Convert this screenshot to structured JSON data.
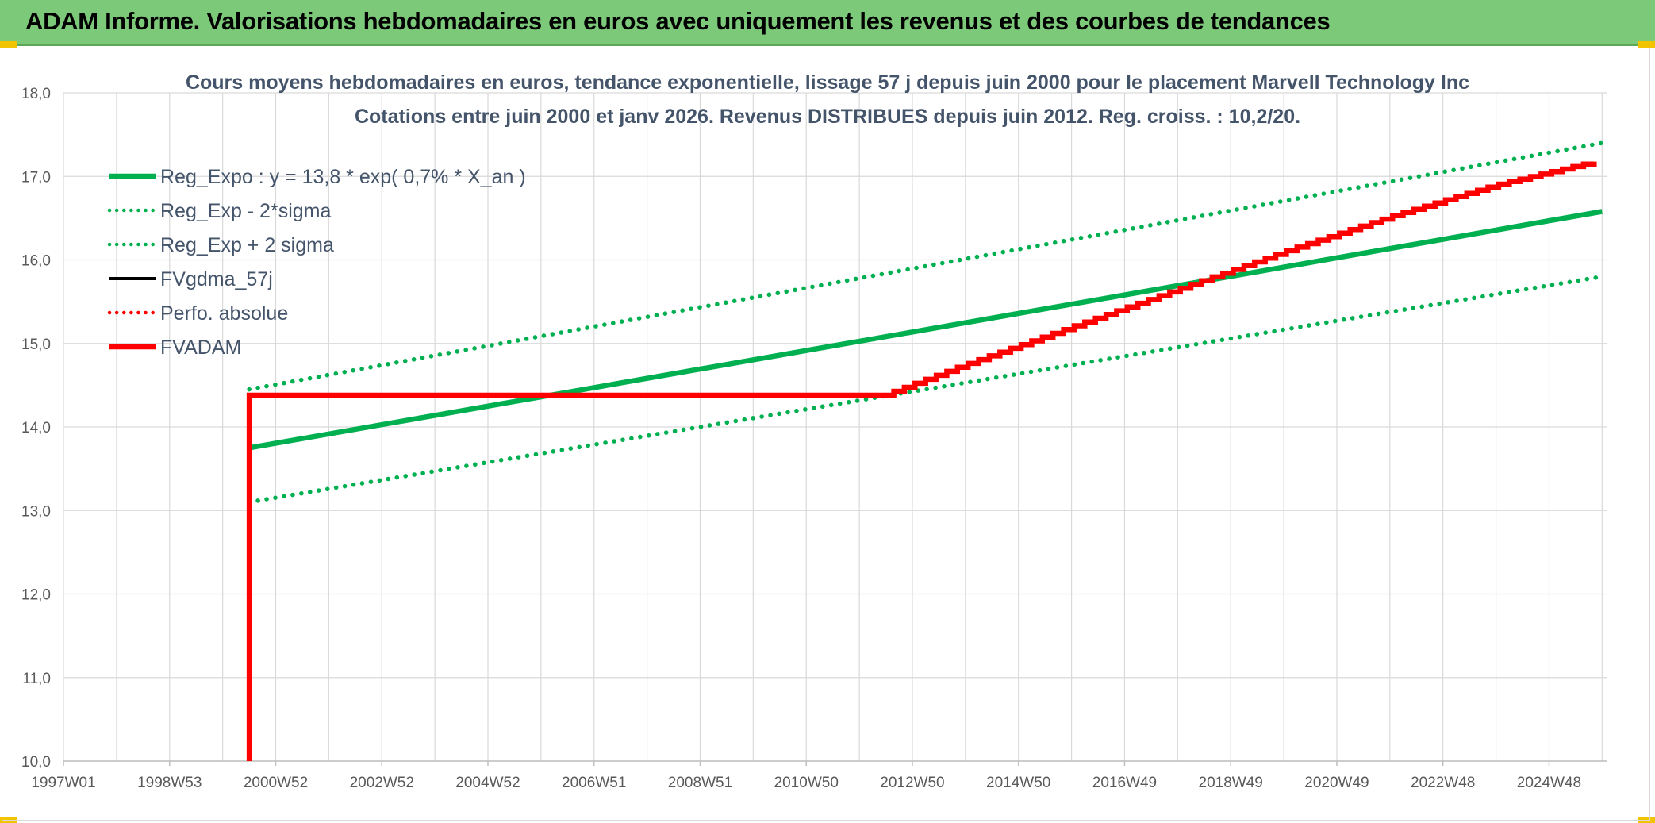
{
  "header": {
    "title": "ADAM Informe. Valorisations hebdomadaires en euros avec uniquement les revenus et des courbes de tendances"
  },
  "colors": {
    "banner": "#7dc97a",
    "green": "#00b050",
    "red": "#ff0000",
    "black": "#000000",
    "grid": "#d9d9d9",
    "title": "#44546a"
  },
  "chart_data": {
    "type": "line",
    "title": "Cours moyens hebdomadaires en euros, tendance exponentielle, lissage 57 j depuis juin 2000 pour le placement Marvell Technology Inc",
    "subtitle": "Cotations entre juin 2000 et janv 2026. Revenus DISTRIBUES depuis juin 2012. Reg. croiss. : 10,2/20.",
    "xlabel": "",
    "ylabel": "",
    "ylim": [
      10,
      18
    ],
    "xlim": [
      1997.0,
      2026.1
    ],
    "y_ticks": [
      "10,0",
      "11,0",
      "12,0",
      "13,0",
      "14,0",
      "15,0",
      "16,0",
      "17,0",
      "18,0"
    ],
    "x_ticks": [
      {
        "label": "1997W01",
        "x": 1997.0
      },
      {
        "label": "1998W53",
        "x": 1999.0
      },
      {
        "label": "2000W52",
        "x": 2001.0
      },
      {
        "label": "2002W52",
        "x": 2003.0
      },
      {
        "label": "2004W52",
        "x": 2005.0
      },
      {
        "label": "2006W51",
        "x": 2007.0
      },
      {
        "label": "2008W51",
        "x": 2009.0
      },
      {
        "label": "2010W50",
        "x": 2011.0
      },
      {
        "label": "2012W50",
        "x": 2013.0
      },
      {
        "label": "2014W50",
        "x": 2015.0
      },
      {
        "label": "2016W49",
        "x": 2017.0
      },
      {
        "label": "2018W49",
        "x": 2019.0
      },
      {
        "label": "2020W49",
        "x": 2021.0
      },
      {
        "label": "2022W48",
        "x": 2023.0
      },
      {
        "label": "2024W48",
        "x": 2025.0
      }
    ],
    "grid": true,
    "legend_position": "top-left",
    "series": [
      {
        "name": "Reg_Expo : y = 13,8 * exp( 0,7% *  X_an )",
        "style": "solid-thick",
        "color": "#00b050",
        "x": [
          2000.5,
          2026.0
        ],
        "y": [
          13.75,
          16.58
        ]
      },
      {
        "name": "Reg_Exp - 2*sigma",
        "style": "dotted",
        "color": "#00b050",
        "x": [
          2000.5,
          2026.0
        ],
        "y": [
          13.1,
          15.8
        ]
      },
      {
        "name": "Reg_Exp + 2 sigma",
        "style": "dotted",
        "color": "#00b050",
        "x": [
          2000.5,
          2026.0
        ],
        "y": [
          14.45,
          17.4
        ]
      },
      {
        "name": "FVgdma_57j",
        "style": "solid",
        "color": "#000000",
        "x": [
          2000.5,
          2012.45
        ],
        "y": [
          14.38,
          14.38
        ]
      },
      {
        "name": "Perfo. absolue",
        "style": "dotted",
        "color": "#ff0000",
        "x": [],
        "y": []
      },
      {
        "name": "FVADAM",
        "style": "solid-thick",
        "color": "#ff0000",
        "x": [
          2000.5,
          2000.5,
          2012.45,
          2014.0,
          2016.0,
          2018.0,
          2020.0,
          2022.0,
          2024.0,
          2026.0
        ],
        "y": [
          10.0,
          14.38,
          14.38,
          14.75,
          15.2,
          15.65,
          16.1,
          16.52,
          16.9,
          17.2
        ],
        "stepped_from": 2012.45
      }
    ]
  }
}
